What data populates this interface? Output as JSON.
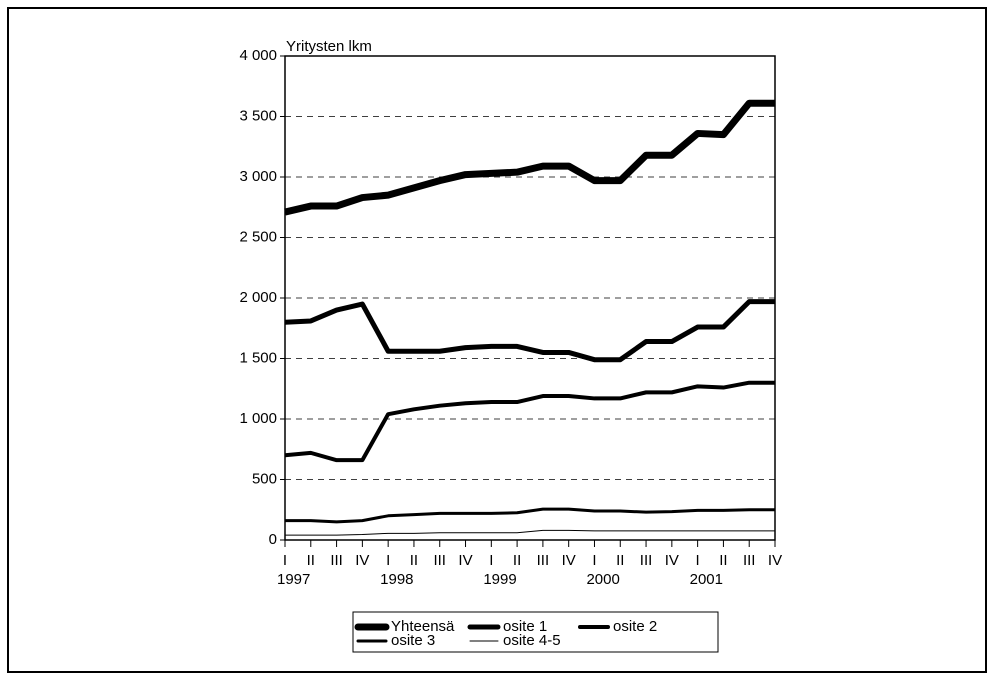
{
  "chart_data": {
    "type": "line",
    "y_label": "Yritysten lkm",
    "categories": [
      "I",
      "II",
      "III",
      "IV",
      "I",
      "II",
      "III",
      "IV",
      "I",
      "II",
      "III",
      "IV",
      "I",
      "II",
      "III",
      "IV",
      "I",
      "II",
      "III",
      "IV"
    ],
    "years": [
      "1997",
      "1998",
      "1999",
      "2000",
      "2001"
    ],
    "series": [
      {
        "name": "Yhteensä",
        "color": "#000000",
        "line_width": 7,
        "values": [
          2710,
          2760,
          2760,
          2830,
          2850,
          2910,
          2970,
          3020,
          3030,
          3040,
          3090,
          3090,
          2970,
          2970,
          3180,
          3180,
          3360,
          3350,
          3610,
          3610
        ]
      },
      {
        "name": "osite 1",
        "color": "#000000",
        "line_width": 5,
        "values": [
          1800,
          1810,
          1900,
          1950,
          1560,
          1560,
          1560,
          1590,
          1600,
          1600,
          1550,
          1550,
          1490,
          1490,
          1640,
          1640,
          1760,
          1760,
          1970,
          1970
        ]
      },
      {
        "name": "osite 2",
        "color": "#000000",
        "line_width": 4,
        "values": [
          700,
          720,
          660,
          660,
          1040,
          1080,
          1110,
          1130,
          1140,
          1140,
          1190,
          1190,
          1170,
          1170,
          1220,
          1220,
          1270,
          1260,
          1300,
          1300
        ]
      },
      {
        "name": "osite 3",
        "color": "#000000",
        "line_width": 3,
        "values": [
          160,
          160,
          150,
          160,
          200,
          210,
          220,
          220,
          220,
          225,
          255,
          255,
          240,
          240,
          230,
          235,
          245,
          245,
          250,
          250
        ]
      },
      {
        "name": "osite 4-5",
        "color": "#000000",
        "line_width": 1,
        "values": [
          40,
          40,
          40,
          45,
          55,
          55,
          60,
          60,
          60,
          60,
          80,
          80,
          75,
          75,
          75,
          75,
          75,
          75,
          75,
          75
        ]
      }
    ],
    "ylim": [
      0,
      4000
    ],
    "yticks": [
      0,
      500,
      {
        "value": 1000,
        "label": "1 000"
      },
      {
        "value": 1500,
        "label": "1 500"
      },
      {
        "value": 2000,
        "label": "2 000"
      },
      {
        "value": 2500,
        "label": "2 500"
      },
      {
        "value": 3000,
        "label": "3 000"
      },
      {
        "value": 3500,
        "label": "3 500"
      },
      {
        "value": 4000,
        "label": "4 000"
      }
    ],
    "grid": true,
    "legend": "bottom"
  }
}
